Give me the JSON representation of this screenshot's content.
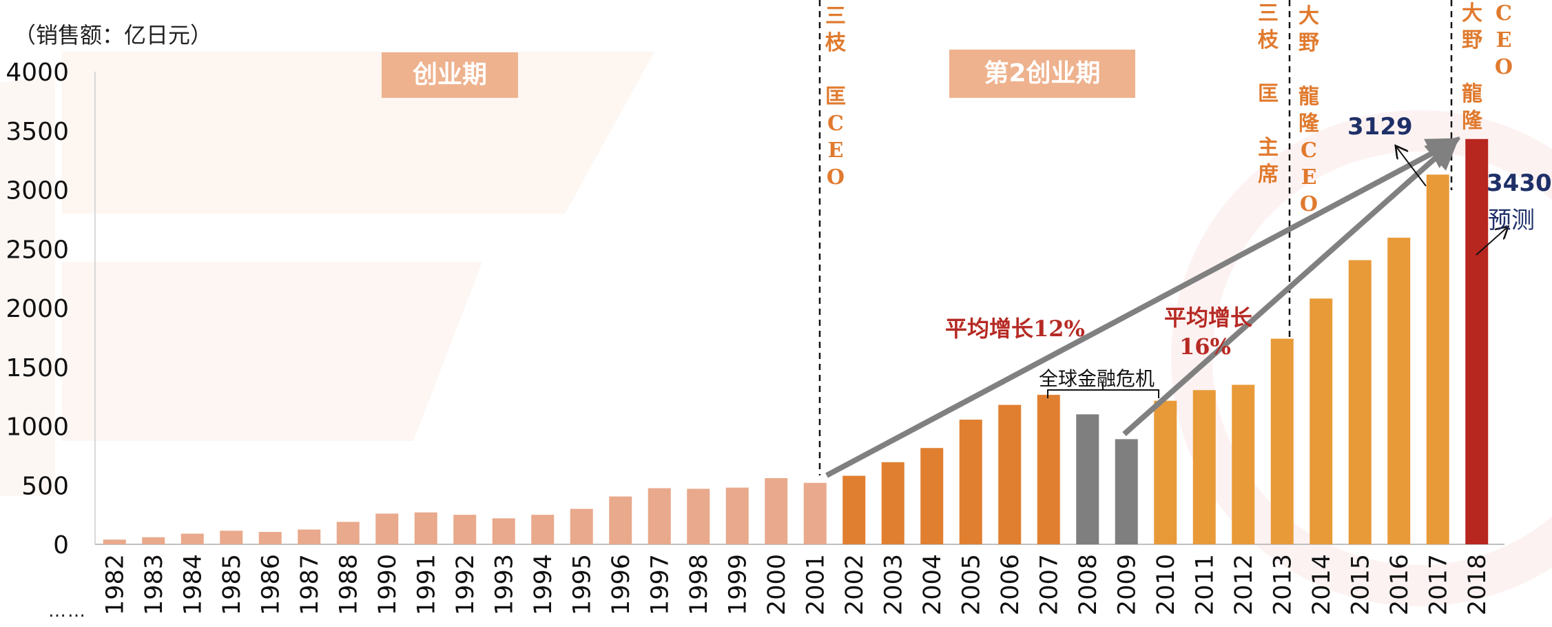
{
  "unit_label": "（销售额：亿日元）",
  "ellipsis": "……",
  "phases": [
    {
      "label": "创业期"
    },
    {
      "label": "第2创业期"
    }
  ],
  "ceo_labels": [
    {
      "chars": [
        "三",
        "枝",
        "",
        "匡",
        "C",
        "E",
        "O"
      ]
    },
    {
      "chars": [
        "三",
        "枝",
        "",
        "匡",
        "",
        "主",
        "席"
      ]
    },
    {
      "chars": [
        "大",
        "野",
        "",
        "龍",
        "隆",
        "C",
        "E",
        "O"
      ]
    },
    {
      "chars": [
        "大",
        "野",
        "",
        "龍",
        "隆"
      ]
    },
    {
      "chars": [
        "C",
        "E",
        "O"
      ]
    }
  ],
  "annotations": {
    "growth_12": "平均增长12%",
    "growth_16_line1": "平均增长",
    "growth_16_line2": "16%",
    "crisis": "全球金融危机",
    "value_2017": "3129",
    "value_2018": "3430",
    "forecast": "预测"
  },
  "colors": {
    "startup_phase": "#E9A98C",
    "second_phase_early": "#E07F30",
    "crisis": "#7F7F7F",
    "second_phase_late": "#E89A38",
    "forecast_bar": "#B82620",
    "arrow": "#808080",
    "value_label": "#1F3068",
    "growth_label": "#B62A24"
  },
  "chart_data": {
    "type": "bar",
    "title": "",
    "xlabel": "",
    "ylabel": "（销售额：亿日元）",
    "ylim": [
      0,
      4000
    ],
    "yticks": [
      0,
      500,
      1000,
      1500,
      2000,
      2500,
      3000,
      3500,
      4000
    ],
    "grid": false,
    "categories": [
      "1982",
      "1983",
      "1984",
      "1985",
      "1986",
      "1987",
      "1988",
      "1990",
      "1991",
      "1992",
      "1993",
      "1994",
      "1995",
      "1996",
      "1997",
      "1998",
      "1999",
      "2000",
      "2001",
      "2002",
      "2003",
      "2004",
      "2005",
      "2006",
      "2007",
      "2008",
      "2009",
      "2010",
      "2011",
      "2012",
      "2013",
      "2014",
      "2015",
      "2016",
      "2017",
      "2018"
    ],
    "values": [
      40,
      60,
      90,
      115,
      105,
      125,
      190,
      260,
      270,
      250,
      220,
      250,
      300,
      405,
      475,
      470,
      480,
      560,
      520,
      580,
      695,
      815,
      1055,
      1180,
      1265,
      1100,
      890,
      1215,
      1305,
      1350,
      1740,
      2080,
      2405,
      2595,
      3129,
      3430
    ],
    "bar_groups": [
      "startup_phase",
      "startup_phase",
      "startup_phase",
      "startup_phase",
      "startup_phase",
      "startup_phase",
      "startup_phase",
      "startup_phase",
      "startup_phase",
      "startup_phase",
      "startup_phase",
      "startup_phase",
      "startup_phase",
      "startup_phase",
      "startup_phase",
      "startup_phase",
      "startup_phase",
      "startup_phase",
      "startup_phase",
      "second_phase_early",
      "second_phase_early",
      "second_phase_early",
      "second_phase_early",
      "second_phase_early",
      "second_phase_early",
      "crisis",
      "crisis",
      "second_phase_late",
      "second_phase_late",
      "second_phase_late",
      "second_phase_late",
      "second_phase_late",
      "second_phase_late",
      "second_phase_late",
      "second_phase_late",
      "forecast_bar"
    ]
  }
}
